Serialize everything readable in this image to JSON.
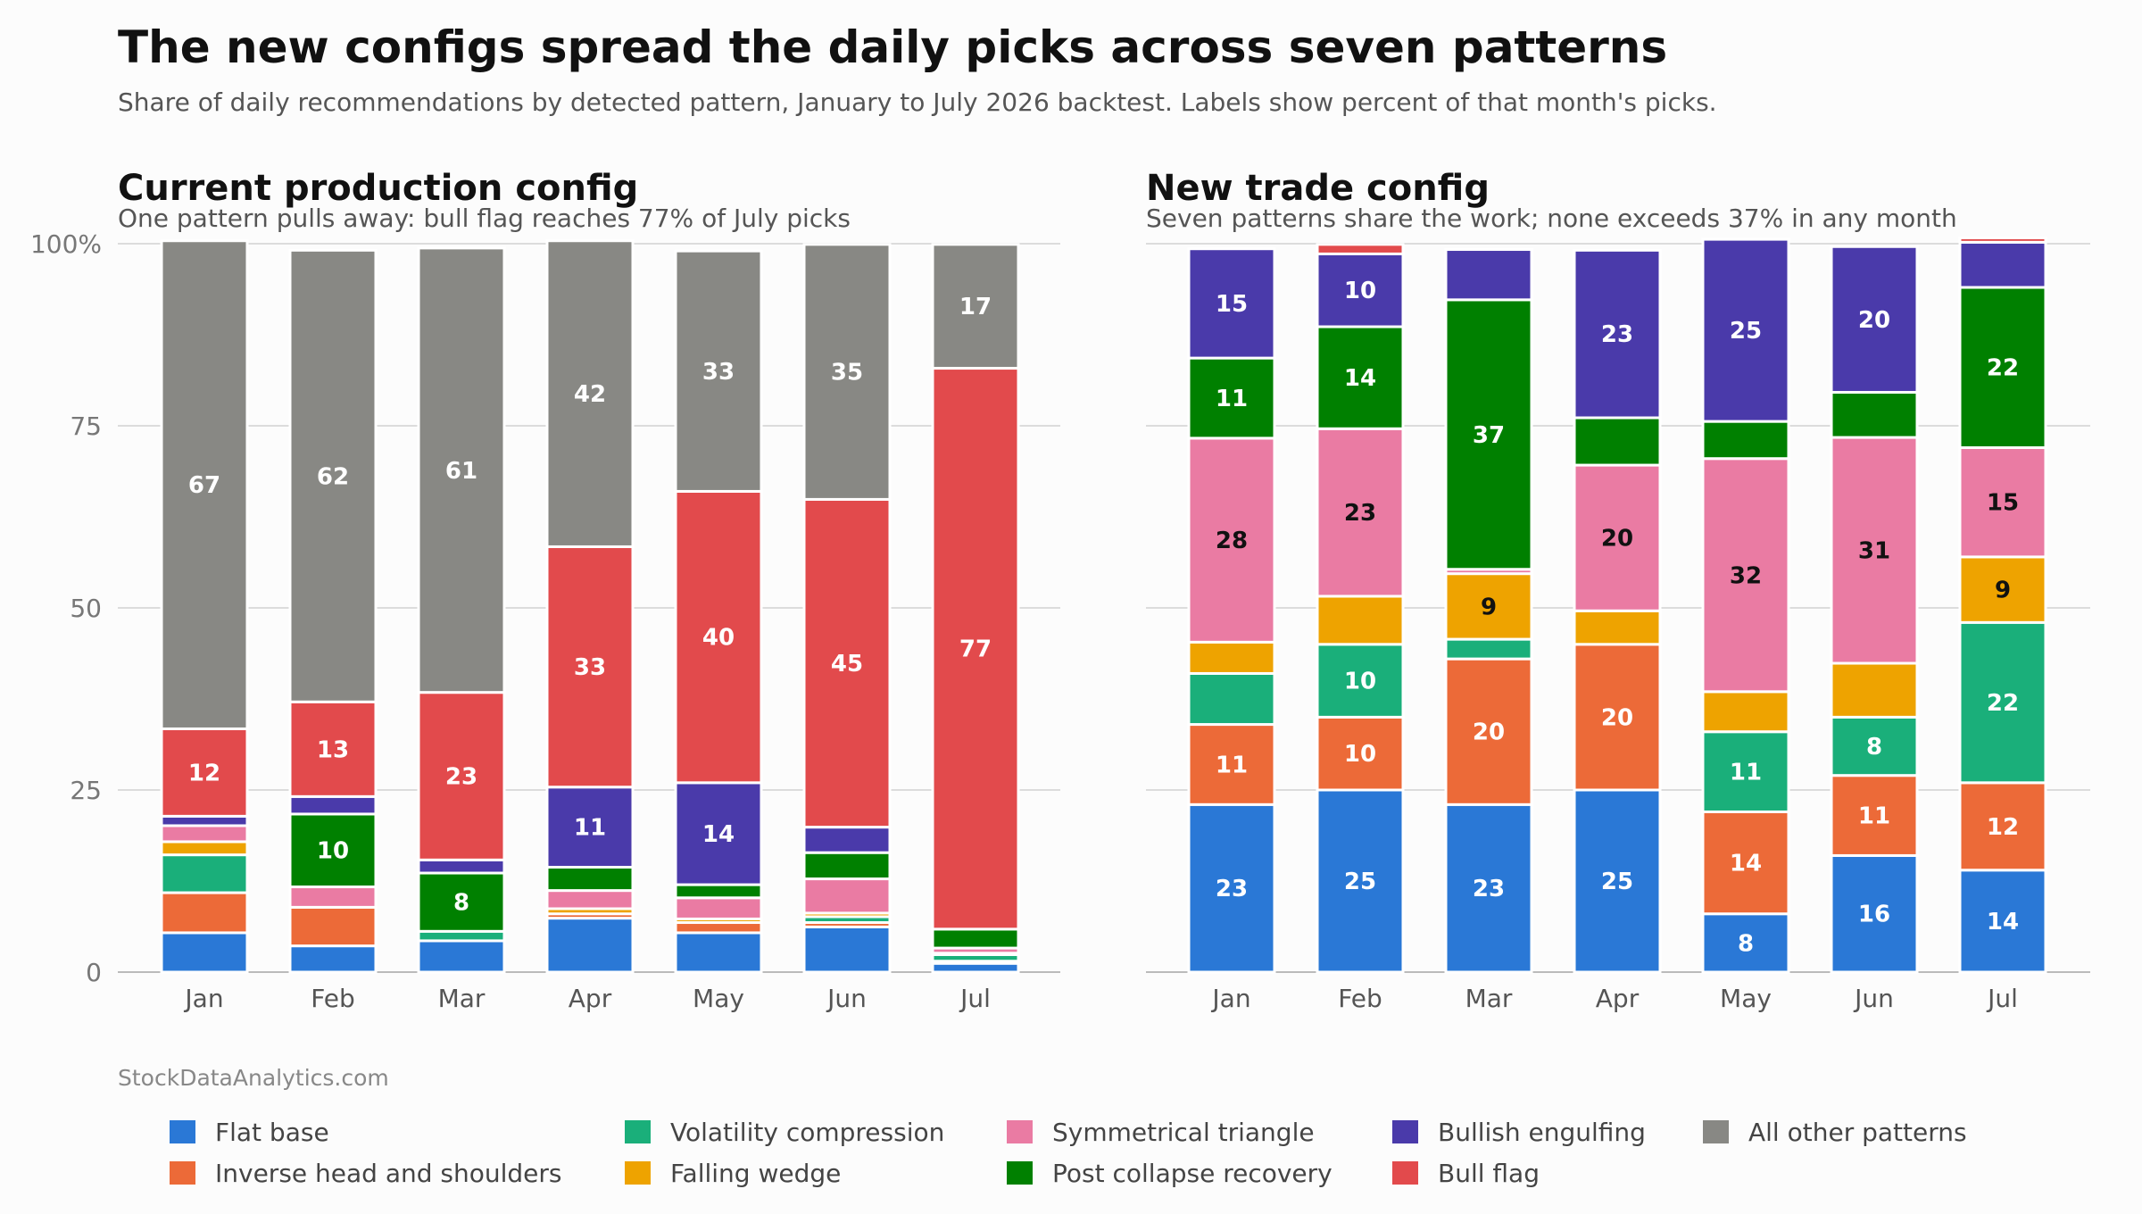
{
  "page": {
    "title": "The new configs spread the daily picks across seven patterns",
    "subtitle": "Share of daily recommendations by detected pattern, January to July 2026 backtest. Labels show percent of that month's picks.",
    "source": "StockDataAnalytics.com"
  },
  "patterns": [
    {
      "name": "Flat base",
      "color": "#2a78d6"
    },
    {
      "name": "Inverse head and shoulders",
      "color": "#ec6a38"
    },
    {
      "name": "Volatility compression",
      "color": "#1aaf7a"
    },
    {
      "name": "Falling wedge",
      "color": "#eea300"
    },
    {
      "name": "Symmetrical triangle",
      "color": "#ea7ba3"
    },
    {
      "name": "Post collapse recovery",
      "color": "#008000"
    },
    {
      "name": "Bullish engulfing",
      "color": "#4a3aaa"
    },
    {
      "name": "Bull flag",
      "color": "#e24a4c"
    },
    {
      "name": "All other patterns",
      "color": "#888884"
    }
  ],
  "chart_data": [
    {
      "type": "bar",
      "stacked": true,
      "title": "Current production config",
      "subtitle": "One pattern pulls away: bull flag reaches 77% of July picks",
      "categories": [
        "Jan",
        "Feb",
        "Mar",
        "Apr",
        "May",
        "Jun",
        "Jul"
      ],
      "ylim": [
        0,
        100
      ],
      "yticks": [
        0,
        25,
        50,
        75,
        100
      ],
      "ytick_labels": [
        "0",
        "25",
        "50",
        "75",
        "100%"
      ],
      "grid": true,
      "series": [
        {
          "name": "Flat base",
          "values": [
            5.4,
            3.6,
            4.3,
            7.4,
            5.4,
            6.2,
            1.2
          ]
        },
        {
          "name": "Inverse head and shoulders",
          "values": [
            5.5,
            5.3,
            0,
            0.6,
            1.4,
            0.6,
            0.3
          ]
        },
        {
          "name": "Volatility compression",
          "values": [
            5.2,
            0,
            1.3,
            0,
            0,
            0.8,
            0.9
          ]
        },
        {
          "name": "Falling wedge",
          "values": [
            1.8,
            0,
            0,
            0.7,
            0.5,
            0.5,
            0.2
          ]
        },
        {
          "name": "Symmetrical triangle",
          "values": [
            2.2,
            2.8,
            0,
            2.5,
            2.9,
            4.7,
            0.7
          ]
        },
        {
          "name": "Post collapse recovery",
          "values": [
            0,
            10,
            8,
            3.2,
            1.8,
            3.6,
            2.6
          ]
        },
        {
          "name": "Bullish engulfing",
          "values": [
            1.3,
            2.4,
            1.8,
            11,
            14,
            3.5,
            0
          ]
        },
        {
          "name": "Bull flag",
          "values": [
            12,
            13,
            23,
            33,
            40,
            45,
            77
          ]
        },
        {
          "name": "All other patterns",
          "values": [
            67,
            62,
            61,
            42,
            33,
            35,
            17
          ]
        }
      ]
    },
    {
      "type": "bar",
      "stacked": true,
      "title": "New trade config",
      "subtitle": "Seven patterns share the work; none exceeds 37% in any month",
      "categories": [
        "Jan",
        "Feb",
        "Mar",
        "Apr",
        "May",
        "Jun",
        "Jul"
      ],
      "ylim": [
        0,
        100
      ],
      "grid": true,
      "series": [
        {
          "name": "Flat base",
          "values": [
            23,
            25,
            23,
            25,
            8,
            16,
            14
          ]
        },
        {
          "name": "Inverse head and shoulders",
          "values": [
            11,
            10,
            20,
            20,
            14,
            11,
            12
          ]
        },
        {
          "name": "Volatility compression",
          "values": [
            7,
            10,
            2.7,
            0,
            11,
            8,
            22
          ]
        },
        {
          "name": "Falling wedge",
          "values": [
            4.3,
            6.6,
            9,
            4.6,
            5.5,
            7.4,
            9
          ]
        },
        {
          "name": "Symmetrical triangle",
          "values": [
            28,
            23,
            0.6,
            20,
            32,
            31,
            15
          ]
        },
        {
          "name": "Post collapse recovery",
          "values": [
            11,
            14,
            37,
            6.5,
            5.1,
            6.2,
            22
          ]
        },
        {
          "name": "Bullish engulfing",
          "values": [
            15,
            10,
            6.9,
            23,
            25,
            20,
            6.2
          ]
        },
        {
          "name": "Bull flag",
          "values": [
            0,
            1.3,
            0,
            0,
            0,
            0,
            0.6
          ]
        },
        {
          "name": "All other patterns",
          "values": [
            0,
            0,
            0,
            0,
            0,
            0,
            0
          ]
        }
      ]
    }
  ]
}
